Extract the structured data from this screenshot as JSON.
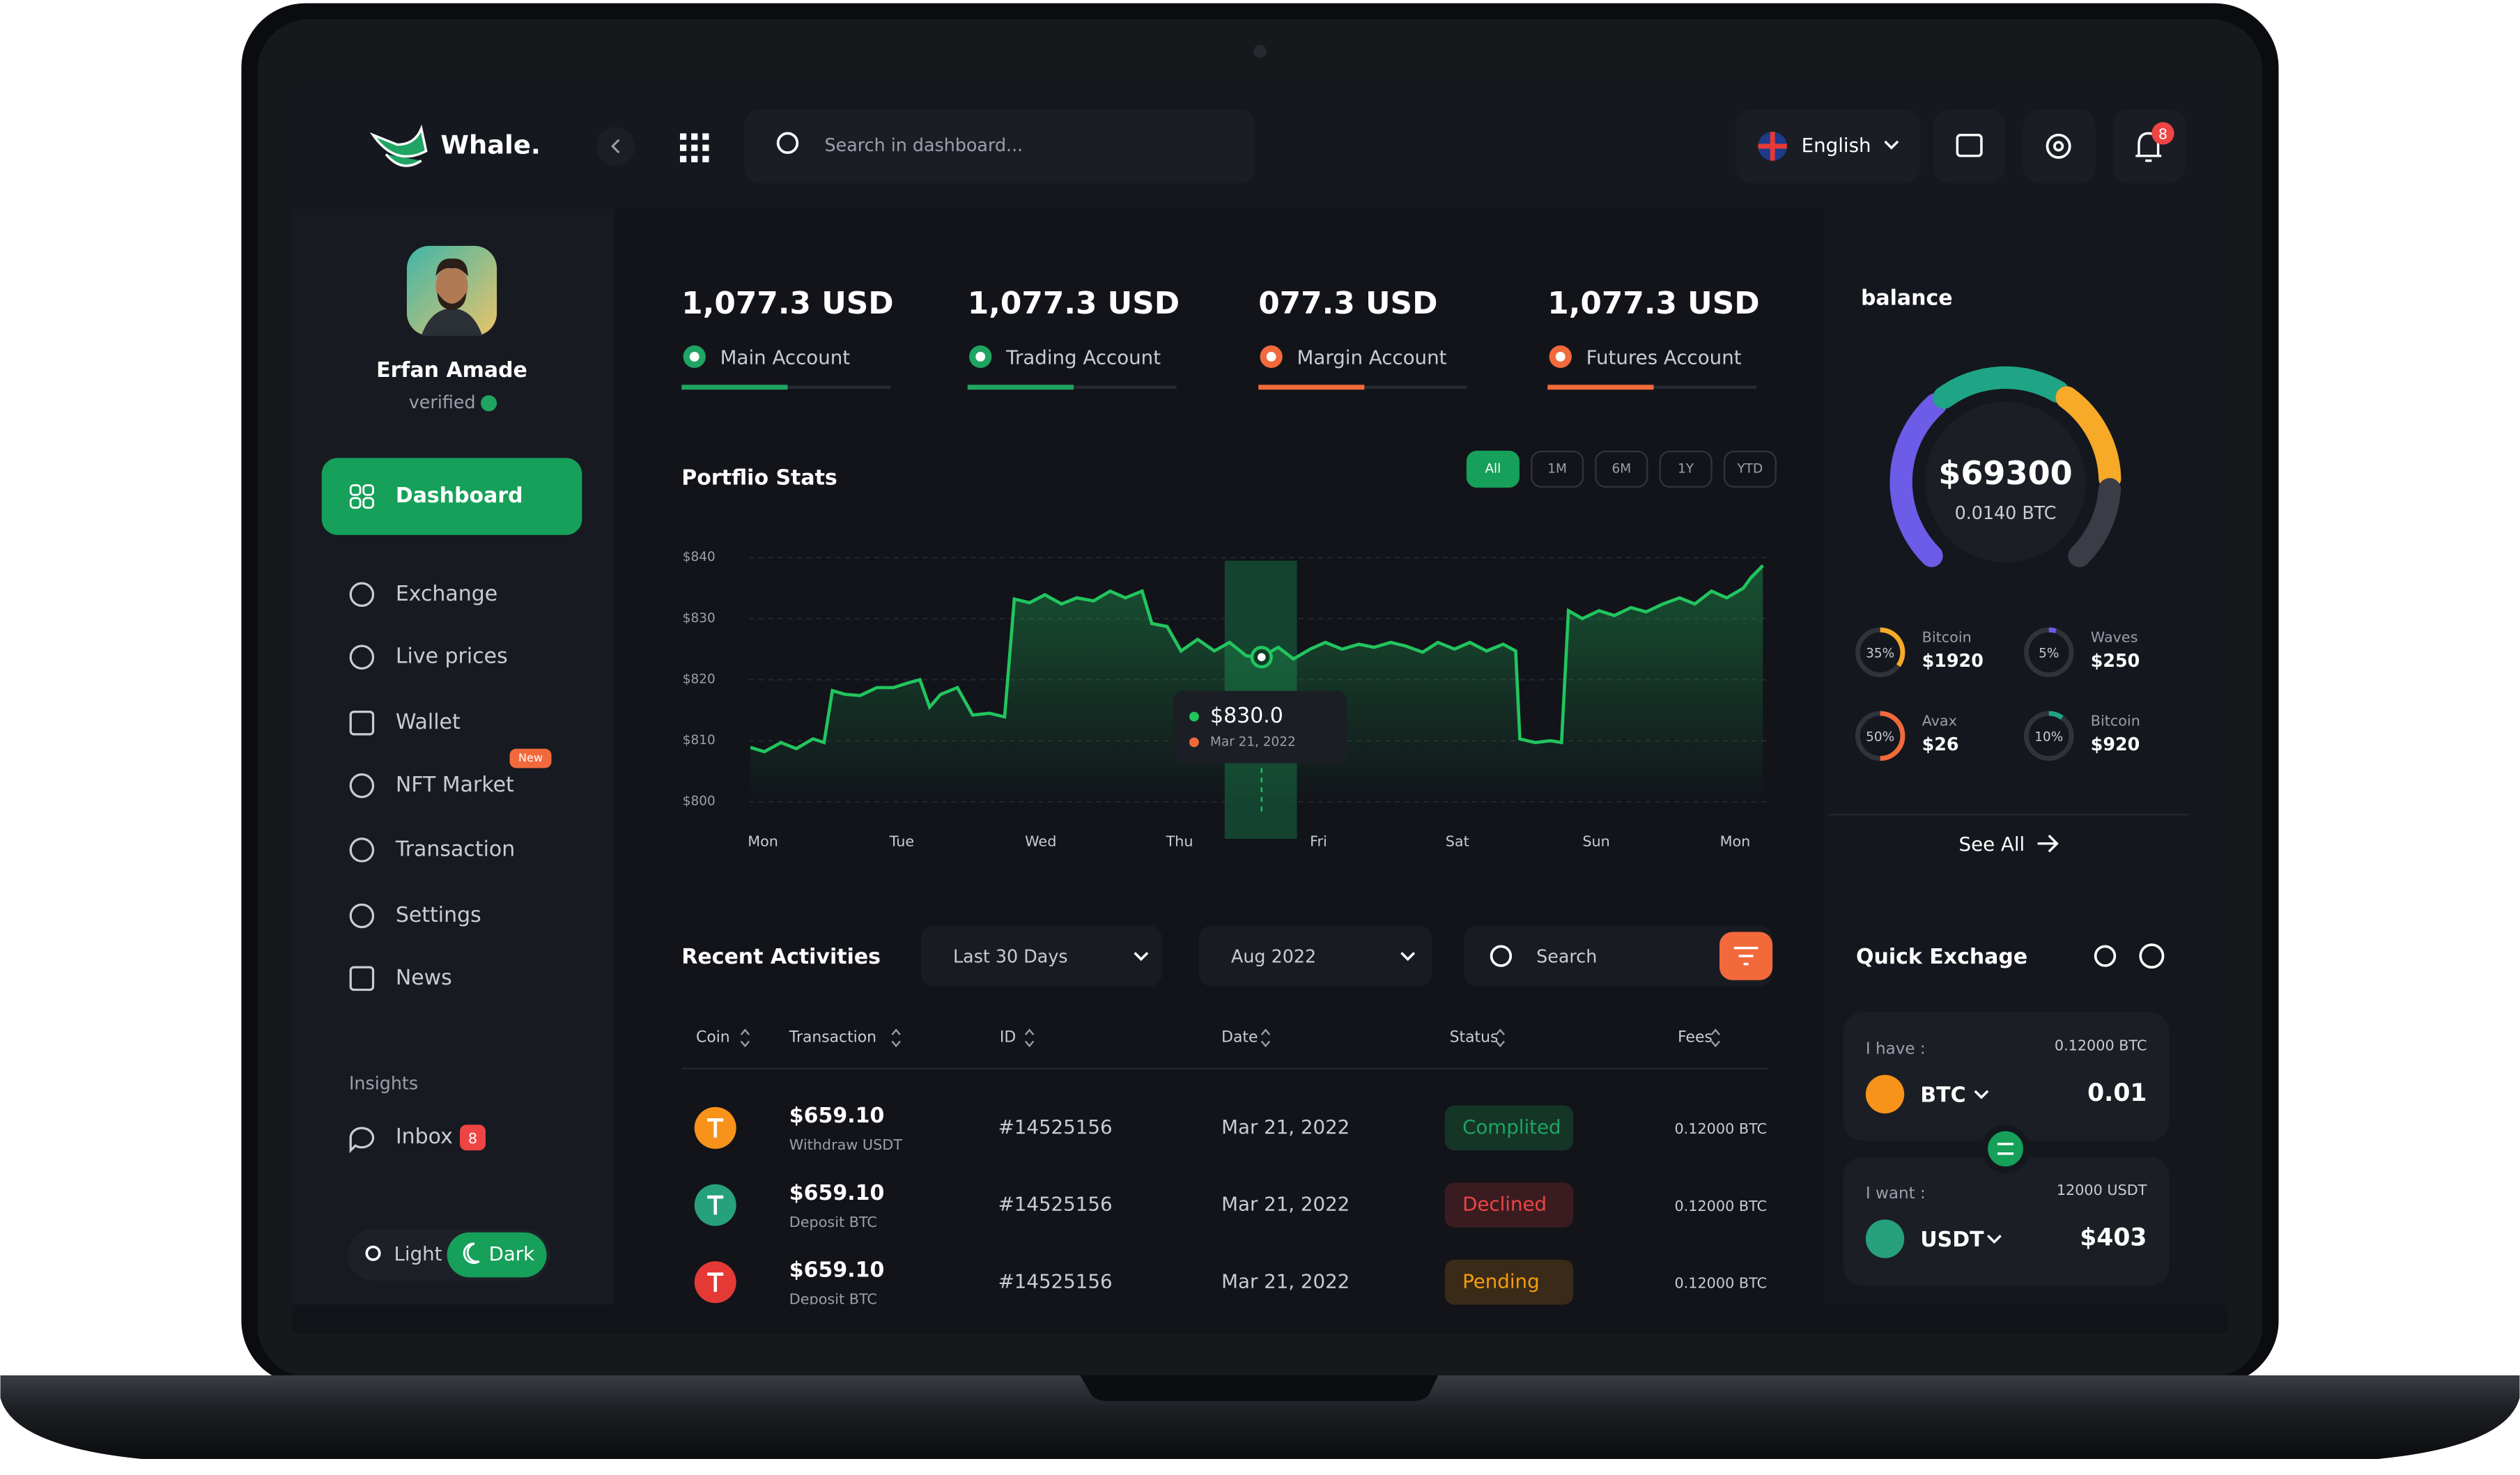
{
  "app": {
    "brand": "Whale.",
    "search_placeholder": "Search in dashboard...",
    "language": "English",
    "notification_count": "8"
  },
  "profile": {
    "name": "Erfan Amade",
    "status": "verified"
  },
  "sidebar": {
    "active": "Dashboard",
    "items": [
      "Exchange",
      "Live prices",
      "Wallet",
      "NFT Market",
      "Transaction",
      "Settings",
      "News"
    ],
    "nft_badge": "New",
    "section": "Insights",
    "inbox": "Inbox",
    "inbox_count": "8",
    "theme_light": "Light",
    "theme_dark": "Dark"
  },
  "accounts": [
    {
      "amount": "1,077.3 USD",
      "name": "Main Account",
      "color": "#1fa463"
    },
    {
      "amount": "1,077.3 USD",
      "name": "Trading Account",
      "color": "#1fa463"
    },
    {
      "amount": "077.3 USD",
      "name": "Margin Account",
      "color": "#f26a3b"
    },
    {
      "amount": "1,077.3 USD",
      "name": "Futures Account",
      "color": "#f26a3b"
    }
  ],
  "chart_data": {
    "type": "line",
    "title": "Portflio Stats",
    "ranges": [
      "All",
      "1M",
      "6M",
      "1Y",
      "YTD"
    ],
    "active_range": "All",
    "x": [
      -0.09,
      0.01,
      0.13,
      0.24,
      0.36,
      0.44,
      0.5,
      0.59,
      0.7,
      0.82,
      0.94,
      1.05,
      1.13,
      1.2,
      1.28,
      1.4,
      1.51,
      1.63,
      1.74,
      1.81,
      1.92,
      2.03,
      2.15,
      2.26,
      2.38,
      2.5,
      2.61,
      2.73,
      2.8,
      2.91,
      3.01,
      3.13,
      3.25,
      3.36,
      3.48,
      3.59,
      3.71,
      3.82,
      3.94,
      4.05,
      4.17,
      4.29,
      4.4,
      4.52,
      4.63,
      4.75,
      4.86,
      4.98,
      5.09,
      5.21,
      5.33,
      5.42,
      5.45,
      5.56,
      5.67,
      5.75,
      5.8,
      5.9,
      6.02,
      6.13,
      6.25,
      6.36,
      6.48,
      6.6,
      6.71,
      6.83,
      6.94,
      7.06,
      7.11,
      7.2
    ],
    "values": [
      808.9,
      808.2,
      809.7,
      808.7,
      810.3,
      809.7,
      818.2,
      817.6,
      817.4,
      818.7,
      818.7,
      819.5,
      820.0,
      815.5,
      817.6,
      818.7,
      814.2,
      814.5,
      813.9,
      833.2,
      832.6,
      833.9,
      832.4,
      833.4,
      832.9,
      834.5,
      833.4,
      834.5,
      829.2,
      828.7,
      824.7,
      826.6,
      824.7,
      826.1,
      823.9,
      823.7,
      825.3,
      823.4,
      825.0,
      826.1,
      825.0,
      825.8,
      825.3,
      826.1,
      825.5,
      824.5,
      826.1,
      825.0,
      826.1,
      824.7,
      825.8,
      824.7,
      810.3,
      809.7,
      810.0,
      809.7,
      831.3,
      830.0,
      831.3,
      830.5,
      831.8,
      831.1,
      832.4,
      833.4,
      832.4,
      834.5,
      833.4,
      835.0,
      836.6,
      838.7
    ],
    "color": "#22c55e",
    "xlim": [
      -0.1,
      7.2
    ],
    "xticks": [
      {
        "value": 0,
        "label": "Mon"
      },
      {
        "value": 1,
        "label": "Tue"
      },
      {
        "value": 2,
        "label": "Wed"
      },
      {
        "value": 3,
        "label": "Thu"
      },
      {
        "value": 4,
        "label": "Fri"
      },
      {
        "value": 5,
        "label": "Sat"
      },
      {
        "value": 6,
        "label": "Sun"
      },
      {
        "value": 7,
        "label": "Mon"
      }
    ],
    "ylim": [
      800,
      840
    ],
    "yticks": [
      {
        "value": 800,
        "label": "$800"
      },
      {
        "value": 810,
        "label": "$810"
      },
      {
        "value": 820,
        "label": "$820"
      },
      {
        "value": 830,
        "label": "$830"
      },
      {
        "value": 840,
        "label": "$840"
      }
    ],
    "grid": true,
    "tooltip": {
      "value": "$830.0",
      "date": "Mar 21, 2022"
    }
  },
  "balance": {
    "title": "balance",
    "amount": "$69300",
    "btc": "0.0140 BTC",
    "see_all": "See All"
  },
  "assets": [
    {
      "percent": 35,
      "percent_label": "35%",
      "name": "Bitcoin",
      "value": "$1920",
      "color": "#f7a928"
    },
    {
      "percent": 5,
      "percent_label": "5%",
      "name": "Waves",
      "value": "$250",
      "color": "#6c5ce7"
    },
    {
      "percent": 50,
      "percent_label": "50%",
      "name": "Avax",
      "value": "$26",
      "color": "#f26a3b"
    },
    {
      "percent": 10,
      "percent_label": "10%",
      "name": "Bitcoin",
      "value": "$920",
      "color": "#1fa486"
    }
  ],
  "activities": {
    "title": "Recent Activities",
    "period": "Last 30 Days",
    "month": "Aug 2022",
    "search": "Search",
    "columns": [
      "Coin",
      "Transaction",
      "ID",
      "Date",
      "Status",
      "Fees"
    ],
    "rows": [
      {
        "amount": "$659.10",
        "type": "Withdraw USDT",
        "id": "#14525156",
        "date": "Mar 21, 2022",
        "status": "Complited",
        "fee": "0.12000 BTC",
        "coin_color": "#f7931a",
        "status_color": "#1fa463",
        "status_bg": "#153527"
      },
      {
        "amount": "$659.10",
        "type": "Deposit BTC",
        "id": "#14525156",
        "date": "Mar 21, 2022",
        "status": "Declined",
        "fee": "0.12000 BTC",
        "coin_color": "#26a17b",
        "status_color": "#ef4444",
        "status_bg": "#3a1c20"
      },
      {
        "amount": "$659.10",
        "type": "Deposit BTC",
        "id": "#14525156",
        "date": "Mar 21, 2022",
        "status": "Pending",
        "fee": "0.12000 BTC",
        "coin_color": "#e53935",
        "status_color": "#f59e0b",
        "status_bg": "#3a2a18"
      }
    ]
  },
  "exchange": {
    "title": "Quick Exchage",
    "have_label": "I have :",
    "have_balance": "0.12000 BTC",
    "have_coin": "BTC",
    "have_amount": "0.01",
    "want_label": "I want :",
    "want_balance": "12000 USDT",
    "want_coin": "USDT",
    "want_amount": "$403"
  }
}
